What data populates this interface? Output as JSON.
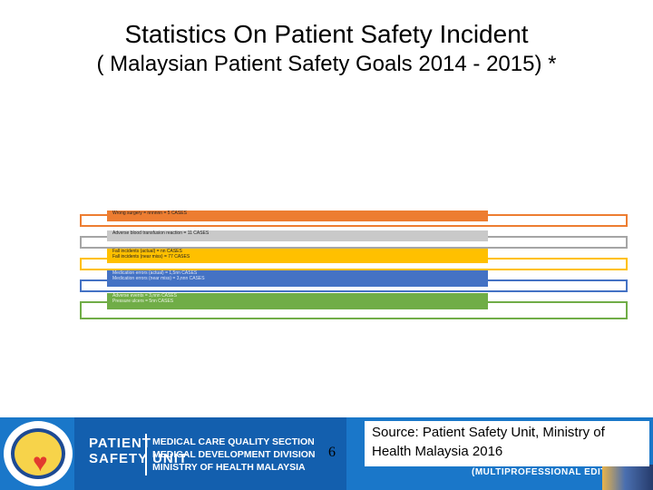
{
  "slide": {
    "title": "Statistics On Patient Safety Incident",
    "subtitle": "( Malaysian Patient Safety Goals 2014 - 2015) *",
    "page_number": "6",
    "source": "Source: Patient Safety Unit, Ministry of Health Malaysia 2016"
  },
  "goals": [
    {
      "lines": [
        "Wrong surgery = nnnnnn = 5 CASES"
      ],
      "color": "#ed7d31",
      "fill": "#ed7d31"
    },
    {
      "lines": [
        "Adverse blood transfusion reaction = 11 CASES"
      ],
      "color": "#a5a5a5",
      "fill": "#c9c9c9"
    },
    {
      "lines": [
        "Fall incidents (actual) = nn CASES",
        "Fall incidents (near miss) = 77 CASES"
      ],
      "color": "#ffc000",
      "fill": "#ffc000"
    },
    {
      "lines": [
        "Medication errors (actual) = 1,5nn CASES",
        "Medication errors (near miss) = 3,nnn CASES"
      ],
      "color": "#4472c4",
      "fill": "#4472c4"
    },
    {
      "lines": [
        "Adverse events = 3,nnn CASES",
        "Pressure ulcers = 5nn CASES"
      ],
      "color": "#70ad47",
      "fill": "#70ad47"
    }
  ],
  "footer": {
    "unit_title_line1": "PATIENT",
    "unit_title_line2": "SAFETY UNIT",
    "org_line1": "MEDICAL CARE QUALITY SECTION",
    "org_line2": "MEDICAL DEVELOPMENT DIVISION",
    "org_line3": "MINISTRY OF HEALTH MALAYSIA",
    "edition": "(MULTIPROFESSIONAL EDITION)"
  }
}
